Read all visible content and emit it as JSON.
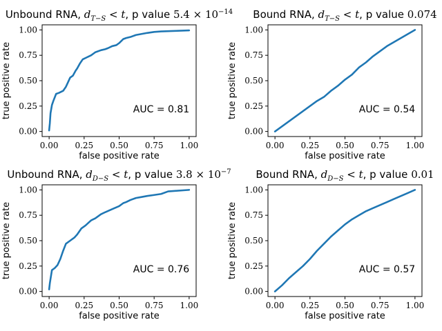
{
  "chart_data": [
    {
      "type": "line",
      "title_parts": [
        {
          "t": "Unbound RNA, ",
          "s": "text"
        },
        {
          "t": "d",
          "s": "math"
        },
        {
          "t": "T−S",
          "s": "sub"
        },
        {
          "t": " < ",
          "s": "mathup"
        },
        {
          "t": "t",
          "s": "math"
        },
        {
          "t": ", p value ",
          "s": "text"
        },
        {
          "t": "5.4 × 10",
          "s": "mathup"
        },
        {
          "t": "−14",
          "s": "sup"
        }
      ],
      "xlabel": "false positive rate",
      "ylabel": "true positive rate",
      "xlim": [
        -0.05,
        1.05
      ],
      "ylim": [
        -0.05,
        1.05
      ],
      "xticks": [
        0.0,
        0.25,
        0.5,
        0.75,
        1.0
      ],
      "xtick_labels": [
        "0.00",
        "0.25",
        "0.50",
        "0.75",
        "1.00"
      ],
      "yticks": [
        0.0,
        0.25,
        0.5,
        0.75,
        1.0
      ],
      "ytick_labels": [
        "0.00",
        "0.25",
        "0.50",
        "0.75",
        "1.00"
      ],
      "annotation": "AUC = 0.81",
      "annotation_pos": [
        0.6,
        0.22
      ],
      "series": [
        {
          "color": "#1f77b4",
          "x": [
            0.0,
            0.005,
            0.01,
            0.02,
            0.03,
            0.05,
            0.07,
            0.1,
            0.12,
            0.13,
            0.15,
            0.17,
            0.19,
            0.2,
            0.22,
            0.24,
            0.27,
            0.3,
            0.33,
            0.37,
            0.4,
            0.42,
            0.45,
            0.48,
            0.5,
            0.53,
            0.55,
            0.58,
            0.62,
            0.66,
            0.7,
            0.75,
            0.8,
            0.9,
            1.0
          ],
          "y": [
            0.01,
            0.08,
            0.18,
            0.26,
            0.3,
            0.37,
            0.38,
            0.4,
            0.44,
            0.47,
            0.53,
            0.55,
            0.6,
            0.62,
            0.67,
            0.71,
            0.73,
            0.75,
            0.78,
            0.8,
            0.81,
            0.82,
            0.84,
            0.85,
            0.87,
            0.91,
            0.92,
            0.93,
            0.95,
            0.96,
            0.97,
            0.98,
            0.985,
            0.99,
            0.995
          ]
        }
      ]
    },
    {
      "type": "line",
      "title_parts": [
        {
          "t": "Bound RNA, ",
          "s": "text"
        },
        {
          "t": "d",
          "s": "math"
        },
        {
          "t": "T−S",
          "s": "sub"
        },
        {
          "t": " < ",
          "s": "mathup"
        },
        {
          "t": "t",
          "s": "math"
        },
        {
          "t": ", p value ",
          "s": "text"
        },
        {
          "t": "0.074",
          "s": "mathup"
        }
      ],
      "xlabel": "false positive rate",
      "ylabel": "true positive rate",
      "xlim": [
        -0.05,
        1.05
      ],
      "ylim": [
        -0.05,
        1.05
      ],
      "xticks": [
        0.0,
        0.25,
        0.5,
        0.75,
        1.0
      ],
      "xtick_labels": [
        "0.00",
        "0.25",
        "0.50",
        "0.75",
        "1.00"
      ],
      "yticks": [
        0.0,
        0.25,
        0.5,
        0.75,
        1.0
      ],
      "ytick_labels": [
        "0.00",
        "0.25",
        "0.50",
        "0.75",
        "1.00"
      ],
      "annotation": "AUC = 0.54",
      "annotation_pos": [
        0.6,
        0.22
      ],
      "series": [
        {
          "color": "#1f77b4",
          "x": [
            0.0,
            0.05,
            0.1,
            0.15,
            0.2,
            0.25,
            0.3,
            0.35,
            0.4,
            0.45,
            0.5,
            0.55,
            0.6,
            0.65,
            0.7,
            0.75,
            0.8,
            0.85,
            0.9,
            0.95,
            1.0
          ],
          "y": [
            0.0,
            0.05,
            0.1,
            0.15,
            0.2,
            0.25,
            0.3,
            0.34,
            0.4,
            0.45,
            0.51,
            0.56,
            0.63,
            0.68,
            0.74,
            0.79,
            0.84,
            0.88,
            0.92,
            0.96,
            1.0
          ]
        }
      ]
    },
    {
      "type": "line",
      "title_parts": [
        {
          "t": "Unbound RNA, ",
          "s": "text"
        },
        {
          "t": "d",
          "s": "math"
        },
        {
          "t": "D−S",
          "s": "sub"
        },
        {
          "t": " < ",
          "s": "mathup"
        },
        {
          "t": "t",
          "s": "math"
        },
        {
          "t": ", p value ",
          "s": "text"
        },
        {
          "t": "3.8 × 10",
          "s": "mathup"
        },
        {
          "t": "−7",
          "s": "sup"
        }
      ],
      "xlabel": "false positive rate",
      "ylabel": "true positive rate",
      "xlim": [
        -0.05,
        1.05
      ],
      "ylim": [
        -0.05,
        1.05
      ],
      "xticks": [
        0.0,
        0.25,
        0.5,
        0.75,
        1.0
      ],
      "xtick_labels": [
        "0.00",
        "0.25",
        "0.50",
        "0.75",
        "1.00"
      ],
      "yticks": [
        0.0,
        0.25,
        0.5,
        0.75,
        1.0
      ],
      "ytick_labels": [
        "0.00",
        "0.25",
        "0.50",
        "0.75",
        "1.00"
      ],
      "annotation": "AUC = 0.76",
      "annotation_pos": [
        0.6,
        0.22
      ],
      "series": [
        {
          "color": "#1f77b4",
          "x": [
            0.0,
            0.005,
            0.02,
            0.04,
            0.06,
            0.08,
            0.1,
            0.12,
            0.15,
            0.18,
            0.2,
            0.23,
            0.26,
            0.3,
            0.33,
            0.37,
            0.4,
            0.45,
            0.5,
            0.53,
            0.55,
            0.58,
            0.62,
            0.66,
            0.7,
            0.75,
            0.8,
            0.85,
            0.9,
            1.0
          ],
          "y": [
            0.02,
            0.08,
            0.21,
            0.23,
            0.26,
            0.32,
            0.4,
            0.47,
            0.5,
            0.53,
            0.56,
            0.62,
            0.65,
            0.7,
            0.72,
            0.76,
            0.78,
            0.81,
            0.84,
            0.87,
            0.88,
            0.9,
            0.92,
            0.93,
            0.94,
            0.95,
            0.96,
            0.985,
            0.99,
            1.0
          ]
        }
      ]
    },
    {
      "type": "line",
      "title_parts": [
        {
          "t": "Bound RNA, ",
          "s": "text"
        },
        {
          "t": "d",
          "s": "math"
        },
        {
          "t": "D−S",
          "s": "sub"
        },
        {
          "t": " < ",
          "s": "mathup"
        },
        {
          "t": "t",
          "s": "math"
        },
        {
          "t": ", p value ",
          "s": "text"
        },
        {
          "t": "0.01",
          "s": "mathup"
        }
      ],
      "xlabel": "false positive rate",
      "ylabel": "true positive rate",
      "xlim": [
        -0.05,
        1.05
      ],
      "ylim": [
        -0.05,
        1.05
      ],
      "xticks": [
        0.0,
        0.25,
        0.5,
        0.75,
        1.0
      ],
      "xtick_labels": [
        "0.00",
        "0.25",
        "0.50",
        "0.75",
        "1.00"
      ],
      "yticks": [
        0.0,
        0.25,
        0.5,
        0.75,
        1.0
      ],
      "ytick_labels": [
        "0.00",
        "0.25",
        "0.50",
        "0.75",
        "1.00"
      ],
      "annotation": "AUC = 0.57",
      "annotation_pos": [
        0.6,
        0.22
      ],
      "series": [
        {
          "color": "#1f77b4",
          "x": [
            0.0,
            0.05,
            0.1,
            0.15,
            0.2,
            0.25,
            0.3,
            0.35,
            0.4,
            0.45,
            0.5,
            0.55,
            0.6,
            0.65,
            0.7,
            0.75,
            0.8,
            0.85,
            0.9,
            0.95,
            1.0
          ],
          "y": [
            0.0,
            0.06,
            0.13,
            0.19,
            0.25,
            0.32,
            0.4,
            0.47,
            0.54,
            0.6,
            0.66,
            0.71,
            0.75,
            0.79,
            0.82,
            0.85,
            0.88,
            0.91,
            0.94,
            0.97,
            1.0
          ]
        }
      ]
    }
  ]
}
